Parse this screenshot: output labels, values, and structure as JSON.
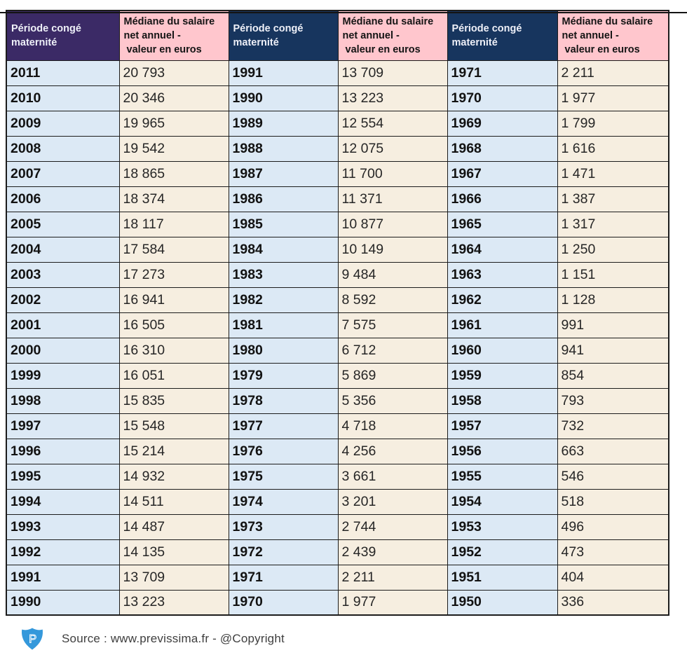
{
  "chart_data": {
    "type": "table",
    "groups": [
      {
        "period_header": "Période congé maternité",
        "value_header": "Médiane du salaire\nnet annuel -\n valeur en euros",
        "header_bg": "#3b2a66",
        "rows": [
          [
            "2011",
            "20 793"
          ],
          [
            "2010",
            "20 346"
          ],
          [
            "2009",
            "19 965"
          ],
          [
            "2008",
            "19 542"
          ],
          [
            "2007",
            "18 865"
          ],
          [
            "2006",
            "18 374"
          ],
          [
            "2005",
            "18 117"
          ],
          [
            "2004",
            "17 584"
          ],
          [
            "2003",
            "17 273"
          ],
          [
            "2002",
            "16 941"
          ],
          [
            "2001",
            "16 505"
          ],
          [
            "2000",
            "16 310"
          ],
          [
            "1999",
            "16 051"
          ],
          [
            "1998",
            "15 835"
          ],
          [
            "1997",
            "15 548"
          ],
          [
            "1996",
            "15 214"
          ],
          [
            "1995",
            "14 932"
          ],
          [
            "1994",
            "14 511"
          ],
          [
            "1993",
            "14 487"
          ],
          [
            "1992",
            "14 135"
          ],
          [
            "1991",
            "13 709"
          ],
          [
            "1990",
            "13 223"
          ]
        ]
      },
      {
        "period_header": "Période congé maternité",
        "value_header": "Médiane du salaire\nnet annuel -\n valeur en euros",
        "header_bg": "#17355e",
        "rows": [
          [
            "1991",
            "13 709"
          ],
          [
            "1990",
            "13 223"
          ],
          [
            "1989",
            "12 554"
          ],
          [
            "1988",
            "12 075"
          ],
          [
            "1987",
            "11 700"
          ],
          [
            "1986",
            "11 371"
          ],
          [
            "1985",
            "10 877"
          ],
          [
            "1984",
            "10 149"
          ],
          [
            "1983",
            "9 484"
          ],
          [
            "1982",
            "8 592"
          ],
          [
            "1981",
            "7 575"
          ],
          [
            "1980",
            "6 712"
          ],
          [
            "1979",
            "5 869"
          ],
          [
            "1978",
            "5 356"
          ],
          [
            "1977",
            "4 718"
          ],
          [
            "1976",
            "4 256"
          ],
          [
            "1975",
            "3 661"
          ],
          [
            "1974",
            "3 201"
          ],
          [
            "1973",
            "2 744"
          ],
          [
            "1972",
            "2 439"
          ],
          [
            "1971",
            "2 211"
          ],
          [
            "1970",
            "1 977"
          ]
        ]
      },
      {
        "period_header": "Période congé maternité",
        "value_header": "Médiane du salaire\nnet annuel -\n valeur en euros",
        "header_bg": "#17355e",
        "rows": [
          [
            "1971",
            "2 211"
          ],
          [
            "1970",
            "1 977"
          ],
          [
            "1969",
            "1 799"
          ],
          [
            "1968",
            "1 616"
          ],
          [
            "1967",
            "1 471"
          ],
          [
            "1966",
            "1 387"
          ],
          [
            "1965",
            "1 317"
          ],
          [
            "1964",
            "1 250"
          ],
          [
            "1963",
            "1 151"
          ],
          [
            "1962",
            "1 128"
          ],
          [
            "1961",
            "991"
          ],
          [
            "1960",
            "941"
          ],
          [
            "1959",
            "854"
          ],
          [
            "1958",
            "793"
          ],
          [
            "1957",
            "732"
          ],
          [
            "1956",
            "663"
          ],
          [
            "1955",
            "546"
          ],
          [
            "1954",
            "518"
          ],
          [
            "1953",
            "496"
          ],
          [
            "1952",
            "473"
          ],
          [
            "1951",
            "404"
          ],
          [
            "1950",
            "336"
          ]
        ]
      }
    ],
    "colors": {
      "period_header_purple": "#3b2a66",
      "period_header_navy": "#17355e",
      "value_header_pink": "#ffc6cd",
      "year_cell_blue": "#dce9f5",
      "value_cell_cream": "#f6eee0",
      "border": "#1c1c1c",
      "logo_blue": "#3498db"
    }
  },
  "footer": {
    "source_text": "Source : www.previssima.fr - @Copyright",
    "logo_letter": "P"
  }
}
